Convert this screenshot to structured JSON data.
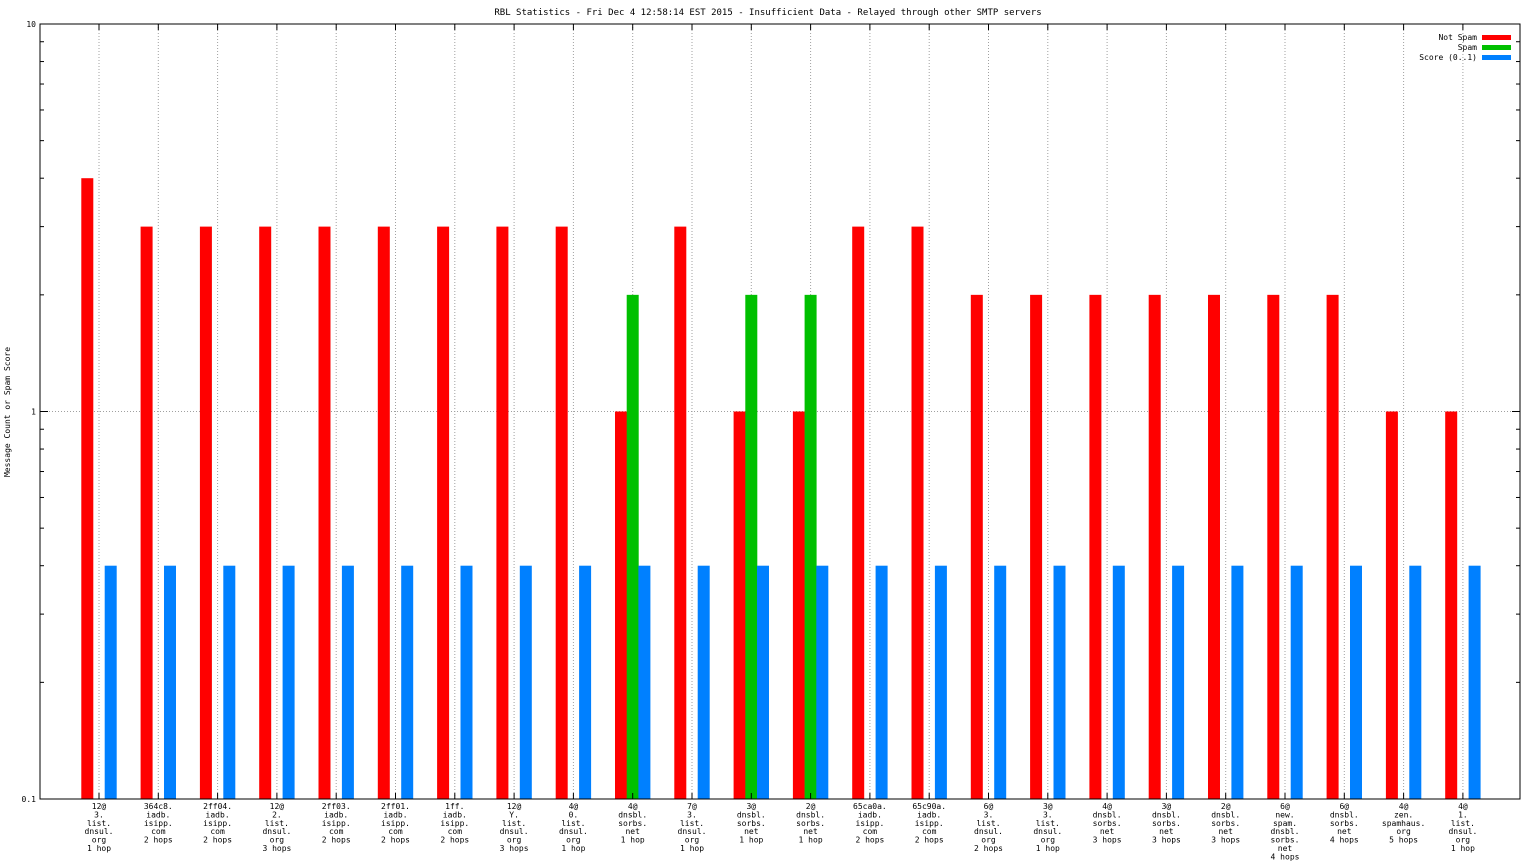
{
  "chart_data": {
    "type": "bar",
    "title": "RBL Statistics - Fri Dec  4 12:58:14 EST 2015 - Insufficient Data - Relayed through other SMTP servers",
    "ylabel": "Message Count or Spam Score",
    "xlabel": "",
    "yscale": "log",
    "ylim": [
      0.1,
      10
    ],
    "yticks": [
      "0.1",
      "1",
      "10"
    ],
    "grid": true,
    "legend_position": "top-right",
    "categories": [
      [
        "12@",
        "3.",
        "list.",
        "dnsul.",
        "org",
        "1 hop"
      ],
      [
        "364c8.",
        "iadb.",
        "isipp.",
        "com",
        "2 hops"
      ],
      [
        "2ff04.",
        "iadb.",
        "isipp.",
        "com",
        "2 hops"
      ],
      [
        "12@",
        "2.",
        "list.",
        "dnsul.",
        "org",
        "3 hops"
      ],
      [
        "2ff03.",
        "iadb.",
        "isipp.",
        "com",
        "2 hops"
      ],
      [
        "2ff01.",
        "iadb.",
        "isipp.",
        "com",
        "2 hops"
      ],
      [
        "1ff.",
        "iadb.",
        "isipp.",
        "com",
        "2 hops"
      ],
      [
        "12@",
        "Y.",
        "list.",
        "dnsul.",
        "org",
        "3 hops"
      ],
      [
        "4@",
        "0.",
        "list.",
        "dnsul.",
        "org",
        "1 hop"
      ],
      [
        "4@",
        "dnsbl.",
        "sorbs.",
        "net",
        "1 hop"
      ],
      [
        "7@",
        "3.",
        "list.",
        "dnsul.",
        "org",
        "1 hop"
      ],
      [
        "3@",
        "dnsbl.",
        "sorbs.",
        "net",
        "1 hop"
      ],
      [
        "2@",
        "dnsbl.",
        "sorbs.",
        "net",
        "1 hop"
      ],
      [
        "65ca0a.",
        "iadb.",
        "isipp.",
        "com",
        "2 hops"
      ],
      [
        "65c90a.",
        "iadb.",
        "isipp.",
        "com",
        "2 hops"
      ],
      [
        "6@",
        "3.",
        "list.",
        "dnsul.",
        "org",
        "2 hops"
      ],
      [
        "3@",
        "3.",
        "list.",
        "dnsul.",
        "org",
        "1 hop"
      ],
      [
        "4@",
        "dnsbl.",
        "sorbs.",
        "net",
        "3 hops"
      ],
      [
        "3@",
        "dnsbl.",
        "sorbs.",
        "net",
        "3 hops"
      ],
      [
        "2@",
        "dnsbl.",
        "sorbs.",
        "net",
        "3 hops"
      ],
      [
        "6@",
        "new.",
        "spam.",
        "dnsbl.",
        "sorbs.",
        "net",
        "4 hops"
      ],
      [
        "6@",
        "dnsbl.",
        "sorbs.",
        "net",
        "4 hops"
      ],
      [
        "4@",
        "zen.",
        "spamhaus.",
        "org",
        "5 hops"
      ],
      [
        "4@",
        "1.",
        "list.",
        "dnsul.",
        "org",
        "1 hop"
      ]
    ],
    "series": [
      {
        "name": "Not Spam",
        "color": "#ff0000",
        "values": [
          4,
          3,
          3,
          3,
          3,
          3,
          3,
          3,
          3,
          1,
          3,
          1,
          1,
          3,
          3,
          2,
          2,
          2,
          2,
          2,
          2,
          2,
          1,
          1
        ]
      },
      {
        "name": "Spam",
        "color": "#00c000",
        "values": [
          0,
          0,
          0,
          0,
          0,
          0,
          0,
          0,
          0,
          2,
          0,
          2,
          2,
          0,
          0,
          0,
          0,
          0,
          0,
          0,
          0,
          0,
          0,
          0
        ]
      },
      {
        "name": "Score (0..1)",
        "color": "#0080ff",
        "values": [
          0.4,
          0.4,
          0.4,
          0.4,
          0.4,
          0.4,
          0.4,
          0.4,
          0.4,
          0.4,
          0.4,
          0.4,
          0.4,
          0.4,
          0.4,
          0.4,
          0.4,
          0.4,
          0.4,
          0.4,
          0.4,
          0.4,
          0.4,
          0.4
        ]
      }
    ]
  }
}
